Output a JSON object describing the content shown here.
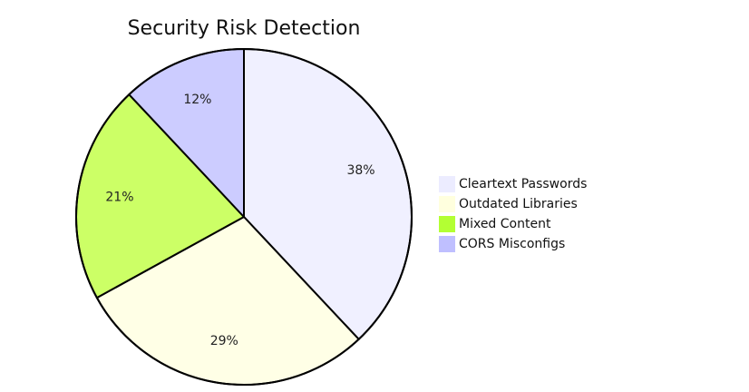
{
  "chart_data": {
    "type": "pie",
    "title": "Security Risk Detection",
    "categories": [
      "Cleartext Passwords",
      "Outdated Libraries",
      "Mixed Content",
      "CORS Misconfigs"
    ],
    "values": [
      38,
      29,
      21,
      12
    ],
    "value_labels": [
      "38%",
      "29%",
      "21%",
      "12%"
    ],
    "colors": [
      "#f0f0ff",
      "#ffffe6",
      "#ccff66",
      "#ccccff"
    ],
    "legend_colors": [
      "#ececff",
      "#ffffde",
      "#b3ff33",
      "#bfbfff"
    ],
    "legend_position": "right",
    "start_angle_deg": 0,
    "direction": "clockwise"
  }
}
